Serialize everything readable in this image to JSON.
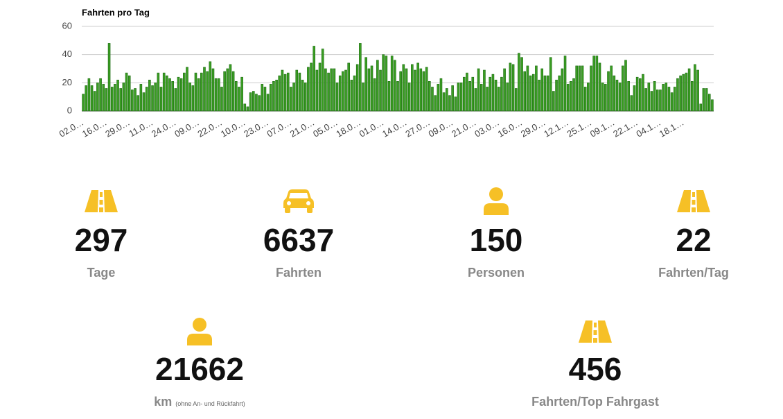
{
  "chart_data": {
    "type": "bar",
    "title": "Fahrten pro Tag",
    "categories": [
      "02.0…",
      null,
      null,
      null,
      null,
      null,
      null,
      null,
      "16.0…",
      null,
      null,
      null,
      null,
      null,
      null,
      null,
      "29.0…",
      null,
      null,
      null,
      null,
      null,
      null,
      null,
      "11.0…",
      null,
      null,
      null,
      null,
      null,
      null,
      null,
      "24.0…",
      null,
      null,
      null,
      null,
      null,
      null,
      null,
      "09.0…",
      null,
      null,
      null,
      null,
      null,
      null,
      null,
      "22.0…",
      null,
      null,
      null,
      null,
      null,
      null,
      null,
      "10.0…",
      null,
      null,
      null,
      null,
      null,
      null,
      null,
      "23.0…",
      null,
      null,
      null,
      null,
      null,
      null,
      null,
      "07.0…",
      null,
      null,
      null,
      null,
      null,
      null,
      null,
      "21.0…",
      null,
      null,
      null,
      null,
      null,
      null,
      null,
      "05.0…",
      null,
      null,
      null,
      null,
      null,
      null,
      null,
      "18.0…",
      null,
      null,
      null,
      null,
      null,
      null,
      null,
      "01.0…",
      null,
      null,
      null,
      null,
      null,
      null,
      null,
      "14.0…",
      null,
      null,
      null,
      null,
      null,
      null,
      null,
      "27.0…",
      null,
      null,
      null,
      null,
      null,
      null,
      null,
      "09.0…",
      null,
      null,
      null,
      null,
      null,
      null,
      null,
      "21.0…",
      null,
      null,
      null,
      null,
      null,
      null,
      null,
      "03.0…",
      null,
      null,
      null,
      null,
      null,
      null,
      null,
      "16.0…",
      null,
      null,
      null,
      null,
      null,
      null,
      null,
      "29.0…",
      null,
      null,
      null,
      null,
      null,
      null,
      null,
      "12.1…",
      null,
      null,
      null,
      null,
      null,
      null,
      null,
      "25.1…",
      null,
      null,
      null,
      null,
      null,
      null,
      null,
      "09.1…",
      null,
      null,
      null,
      null,
      null,
      null,
      null,
      "22.1…",
      null,
      null,
      null,
      null,
      null,
      null,
      null,
      "04.1…",
      null,
      null,
      null,
      null,
      null,
      null,
      null,
      "18.1…",
      null,
      null,
      null,
      null,
      null,
      null,
      null,
      null,
      null,
      null
    ],
    "values": [
      12,
      18,
      23,
      18,
      14,
      20,
      23,
      19,
      16,
      48,
      17,
      19,
      22,
      16,
      20,
      27,
      25,
      15,
      16,
      11,
      19,
      13,
      17,
      22,
      18,
      20,
      27,
      17,
      27,
      25,
      23,
      21,
      16,
      24,
      23,
      27,
      31,
      20,
      18,
      27,
      23,
      27,
      31,
      28,
      35,
      30,
      23,
      23,
      17,
      28,
      30,
      33,
      28,
      21,
      17,
      24,
      5,
      3,
      13,
      14,
      12,
      11,
      19,
      17,
      12,
      19,
      21,
      22,
      25,
      29,
      26,
      27,
      17,
      20,
      29,
      27,
      22,
      20,
      31,
      34,
      46,
      29,
      34,
      44,
      30,
      27,
      30,
      30,
      20,
      25,
      28,
      29,
      34,
      22,
      25,
      33,
      48,
      20,
      38,
      30,
      32,
      23,
      36,
      29,
      40,
      39,
      21,
      39,
      36,
      21,
      28,
      33,
      30,
      20,
      33,
      29,
      34,
      30,
      28,
      31,
      21,
      17,
      11,
      19,
      23,
      13,
      16,
      11,
      18,
      10,
      20,
      20,
      24,
      27,
      21,
      24,
      16,
      30,
      19,
      29,
      17,
      24,
      26,
      22,
      17,
      24,
      30,
      20,
      34,
      33,
      16,
      41,
      38,
      28,
      32,
      25,
      26,
      32,
      22,
      30,
      25,
      25,
      38,
      14,
      22,
      25,
      30,
      39,
      19,
      21,
      23,
      32,
      32,
      32,
      17,
      20,
      32,
      39,
      39,
      34,
      20,
      19,
      28,
      32,
      25,
      22,
      20,
      32,
      36,
      21,
      11,
      18,
      24,
      23,
      26,
      16,
      20,
      14,
      21,
      15,
      15,
      19,
      20,
      17,
      13,
      17,
      23,
      25,
      26,
      27,
      30,
      21,
      33,
      29,
      5,
      16,
      16,
      12,
      8
    ],
    "color": "#3a9d23",
    "ylim": [
      0,
      60
    ],
    "yticks": [
      0,
      20,
      40,
      60
    ],
    "grid": true
  },
  "stats": [
    {
      "value": 297,
      "label": "Tage"
    },
    {
      "value": 6637,
      "label": "Fahrten"
    },
    {
      "value": 150,
      "label": "Personen"
    },
    {
      "value": 22,
      "label": "Fahrten/Tag"
    },
    {
      "value": 21662,
      "label": "km",
      "note": "(ohne An- und Rückfahrt)"
    },
    {
      "value": 456,
      "label": "Fahrten/Top Fahrgast"
    }
  ]
}
